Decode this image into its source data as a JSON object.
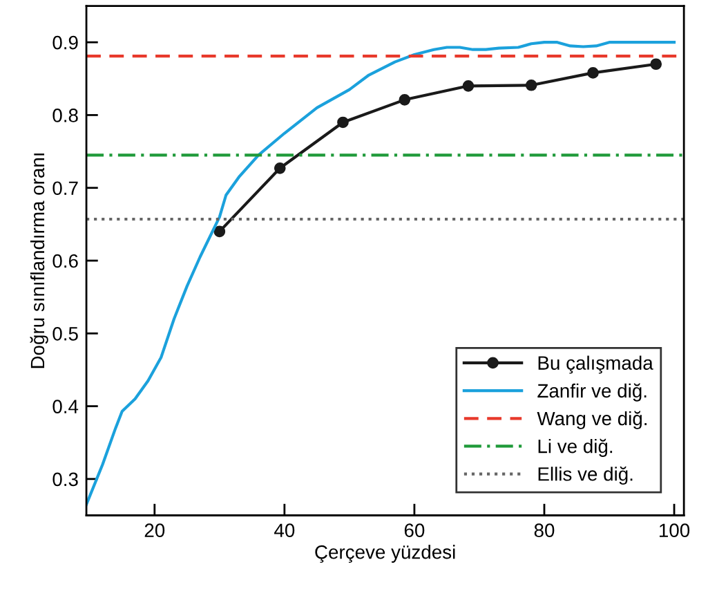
{
  "chart_data": {
    "type": "line",
    "xlabel": "Çerçeve yüzdesi",
    "ylabel": "Doğru sınıflandırma oranı",
    "xlim": [
      9.5,
      101.5
    ],
    "ylim": [
      0.25,
      0.95
    ],
    "xticks": [
      20,
      40,
      60,
      80,
      100
    ],
    "yticks": [
      0.3,
      0.4,
      0.5,
      0.6,
      0.7,
      0.8,
      0.9
    ],
    "grid": false,
    "legend": "bottom right",
    "series": [
      {
        "name": "Bu çalışmada",
        "color": "#1a1a1a",
        "marker": "circle",
        "x": [
          30,
          39.3,
          49,
          58.5,
          68.3,
          78,
          87.5,
          97.2
        ],
        "values": [
          0.64,
          0.727,
          0.79,
          0.821,
          0.84,
          0.841,
          0.858,
          0.87
        ]
      },
      {
        "name": "Zanfir ve diğ.",
        "color": "#1ba1dc",
        "marker": "none",
        "x": [
          9.5,
          12,
          14,
          15,
          17,
          19,
          21,
          23,
          25,
          27,
          30,
          31,
          33,
          36,
          40,
          45,
          50,
          53,
          57,
          60,
          63,
          65,
          67,
          69,
          71,
          73,
          76,
          78,
          80,
          82,
          84,
          86,
          88,
          90,
          100
        ],
        "values": [
          0.265,
          0.32,
          0.37,
          0.393,
          0.41,
          0.435,
          0.467,
          0.52,
          0.565,
          0.605,
          0.66,
          0.69,
          0.715,
          0.745,
          0.775,
          0.81,
          0.835,
          0.855,
          0.873,
          0.883,
          0.89,
          0.893,
          0.893,
          0.89,
          0.89,
          0.892,
          0.893,
          0.898,
          0.9,
          0.9,
          0.895,
          0.894,
          0.895,
          0.9,
          0.9
        ]
      }
    ],
    "ref_lines": [
      {
        "axis": "y",
        "value": 0.881,
        "label": "Wang ve diğ.",
        "color": "#e8392b",
        "line_style": "dashed"
      },
      {
        "axis": "y",
        "value": 0.745,
        "label": "Li ve diğ.",
        "color": "#1f9a3a",
        "line_style": "dashdot"
      },
      {
        "axis": "y",
        "value": 0.657,
        "label": "Ellis ve diğ.",
        "color": "#666666",
        "line_style": "dotted"
      }
    ]
  }
}
